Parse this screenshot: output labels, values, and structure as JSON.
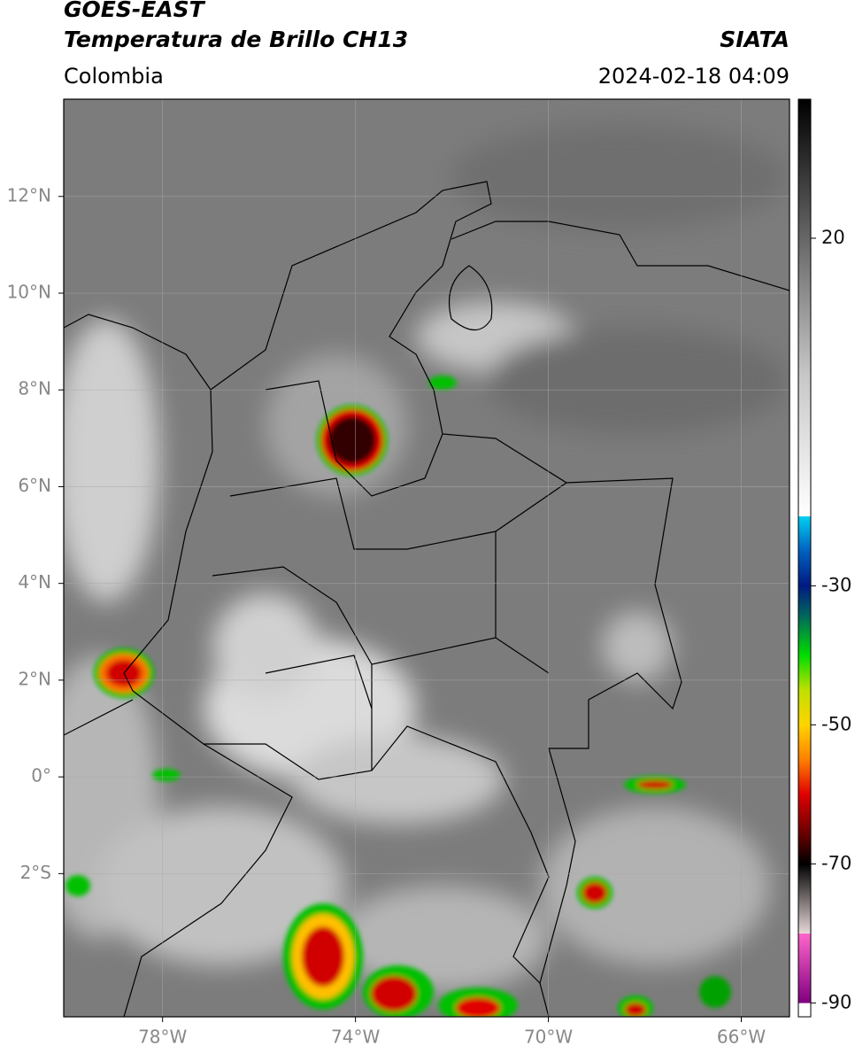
{
  "header": {
    "satellite": "GOES-EAST",
    "product": "Temperatura de Brillo CH13",
    "agency": "SIATA",
    "region": "Colombia",
    "datetime": "2024-02-18 04:09"
  },
  "map": {
    "xlim": [
      -80.05,
      -65.0
    ],
    "ylim": [
      -4.96,
      14.01
    ],
    "xticks": [
      {
        "value": -78,
        "label": "78°W"
      },
      {
        "value": -74,
        "label": "74°W"
      },
      {
        "value": -70,
        "label": "70°W"
      },
      {
        "value": -66,
        "label": "66°W"
      }
    ],
    "yticks": [
      {
        "value": 12,
        "label": "12°N"
      },
      {
        "value": 10,
        "label": "10°N"
      },
      {
        "value": 8,
        "label": "8°N"
      },
      {
        "value": 6,
        "label": "6°N"
      },
      {
        "value": 4,
        "label": "4°N"
      },
      {
        "value": 2,
        "label": "2°N"
      },
      {
        "value": 0,
        "label": "0°"
      },
      {
        "value": -2,
        "label": "2°S"
      }
    ],
    "grid": true
  },
  "colorbar": {
    "lim": [
      -92,
      40
    ],
    "ticks": [
      20,
      -30,
      -50,
      -70,
      -90
    ],
    "stops": [
      {
        "value": 40,
        "color": "#000000"
      },
      {
        "value": 20,
        "color": "#666666"
      },
      {
        "value": 0,
        "color": "#c8c8c8"
      },
      {
        "value": -20,
        "color": "#ffffff"
      },
      {
        "value": -20,
        "color": "#00d0f0"
      },
      {
        "value": -25,
        "color": "#0060c0"
      },
      {
        "value": -30,
        "color": "#001a80"
      },
      {
        "value": -34,
        "color": "#006060"
      },
      {
        "value": -40,
        "color": "#00dd00"
      },
      {
        "value": -45,
        "color": "#c0e000"
      },
      {
        "value": -50,
        "color": "#ffd400"
      },
      {
        "value": -55,
        "color": "#ff8000"
      },
      {
        "value": -60,
        "color": "#e00000"
      },
      {
        "value": -66,
        "color": "#600000"
      },
      {
        "value": -70,
        "color": "#000000"
      },
      {
        "value": -80,
        "color": "#e8d8d8"
      },
      {
        "value": -80,
        "color": "#ff66cc"
      },
      {
        "value": -90,
        "color": "#800080"
      },
      {
        "value": -90,
        "color": "#ffffff"
      },
      {
        "value": -92,
        "color": "#ffffff"
      }
    ]
  }
}
